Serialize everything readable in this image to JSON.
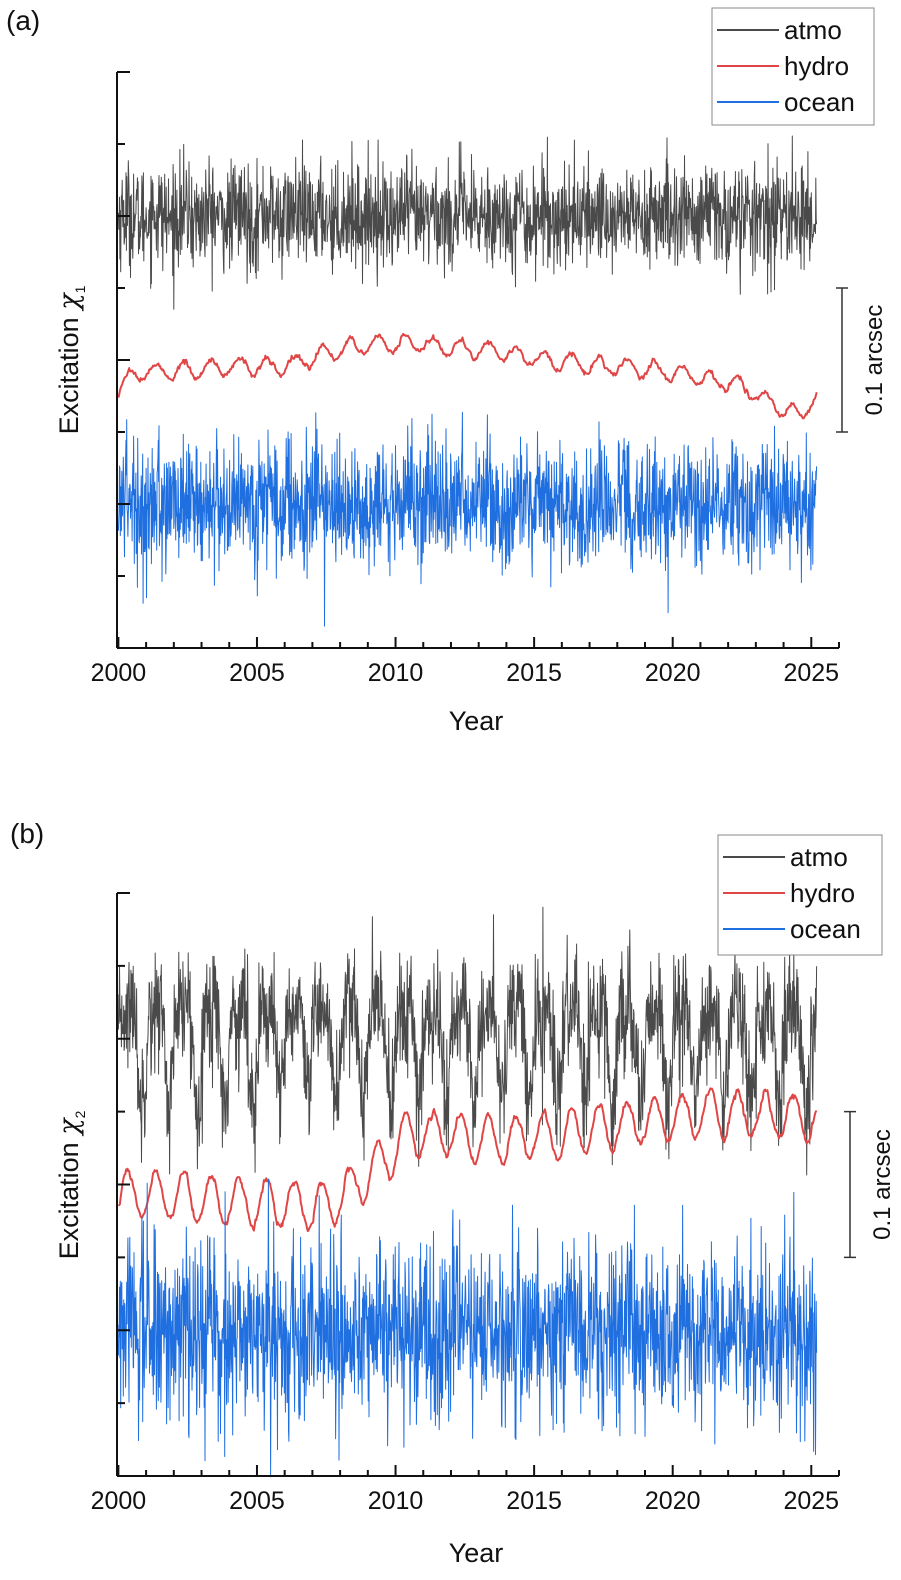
{
  "chart_data": [
    {
      "type": "line",
      "panel_label": "(a)",
      "title": "",
      "xlabel": "Year",
      "ylabel": "Excitation",
      "ylabel_symbol": "χ",
      "ylabel_subscript": "1",
      "xlim": [
        1999.95,
        2026.0
      ],
      "xticks": [
        2000,
        2005,
        2010,
        2015,
        2020,
        2025
      ],
      "xtick_labels": [
        "2000",
        "2005",
        "2010",
        "2015",
        "2020",
        "2025"
      ],
      "x_minor_step": 1,
      "ylim": [
        -0.2,
        0.2
      ],
      "y_major_step": 0.1,
      "y_tick_labels_shown": false,
      "grid": false,
      "legend_position": "top-right",
      "scale_bar": {
        "label": "0.1 arcsec",
        "value": 0.1
      },
      "series": [
        {
          "name": "atmo",
          "color": "#4a4a4a",
          "offset": 0.1,
          "noise_std": 0.018,
          "annual_amp": 0.003,
          "semiannual_amp": 0.0,
          "trend": [
            [
              2000,
              0.0
            ],
            [
              2025.2,
              0.0
            ]
          ]
        },
        {
          "name": "hydro",
          "color": "#e04646",
          "offset": 0.0,
          "noise_std": 0.0015,
          "annual_amp": 0.006,
          "semiannual_amp": 0.0,
          "trend": [
            [
              2000,
              -0.022
            ],
            [
              2000.5,
              -0.01
            ],
            [
              2003,
              -0.006
            ],
            [
              2006,
              -0.004
            ],
            [
              2008.5,
              0.01
            ],
            [
              2011,
              0.012
            ],
            [
              2014,
              0.005
            ],
            [
              2017,
              -0.004
            ],
            [
              2020,
              -0.008
            ],
            [
              2022.5,
              -0.018
            ],
            [
              2024.5,
              -0.04
            ],
            [
              2025.2,
              -0.025
            ]
          ]
        },
        {
          "name": "ocean",
          "color": "#1f6fe0",
          "offset": -0.1,
          "noise_std": 0.022,
          "annual_amp": 0.004,
          "semiannual_amp": 0.0,
          "trend": [
            [
              2000,
              0.0
            ],
            [
              2025.2,
              0.0
            ]
          ]
        }
      ]
    },
    {
      "type": "line",
      "panel_label": "(b)",
      "title": "",
      "xlabel": "Year",
      "ylabel": "Excitation",
      "ylabel_symbol": "χ",
      "ylabel_subscript": "2",
      "xlim": [
        1999.95,
        2026.0
      ],
      "xticks": [
        2000,
        2005,
        2010,
        2015,
        2020,
        2025
      ],
      "xtick_labels": [
        "2000",
        "2005",
        "2010",
        "2015",
        "2020",
        "2025"
      ],
      "x_minor_step": 1,
      "ylim": [
        -0.2,
        0.2
      ],
      "y_major_step": 0.1,
      "y_tick_labels_shown": false,
      "grid": false,
      "legend_position": "top-right",
      "scale_bar": {
        "label": "0.1 arcsec",
        "value": 0.1
      },
      "series": [
        {
          "name": "atmo",
          "color": "#4a4a4a",
          "offset": 0.1,
          "noise_std": 0.02,
          "annual_amp": 0.03,
          "semiannual_amp": 0.015,
          "trend": [
            [
              2000,
              0.0
            ],
            [
              2025.2,
              0.0
            ]
          ]
        },
        {
          "name": "hydro",
          "color": "#e04646",
          "offset": 0.0,
          "noise_std": 0.002,
          "annual_amp": 0.016,
          "semiannual_amp": 0.0,
          "trend": [
            [
              2000,
              -0.005
            ],
            [
              2003,
              -0.01
            ],
            [
              2007.5,
              -0.015
            ],
            [
              2009,
              0.005
            ],
            [
              2010.5,
              0.035
            ],
            [
              2012,
              0.035
            ],
            [
              2014,
              0.03
            ],
            [
              2016,
              0.035
            ],
            [
              2018,
              0.04
            ],
            [
              2021,
              0.05
            ],
            [
              2023,
              0.048
            ],
            [
              2025.2,
              0.045
            ]
          ]
        },
        {
          "name": "ocean",
          "color": "#1f6fe0",
          "offset": -0.1,
          "noise_std": 0.03,
          "annual_amp": 0.005,
          "semiannual_amp": 0.0,
          "trend": [
            [
              2000,
              0.0
            ],
            [
              2025.2,
              0.0
            ]
          ]
        }
      ]
    }
  ]
}
